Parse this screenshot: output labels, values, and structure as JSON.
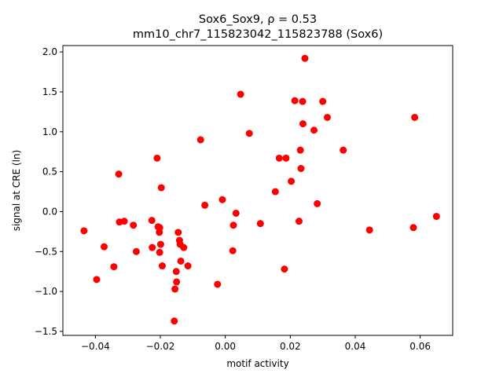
{
  "chart_data": {
    "type": "scatter",
    "title_line1": "Sox6_Sox9, ρ = 0.53",
    "title_line2": "mm10_chr7_115823042_115823788 (Sox6)",
    "xlabel": "motif activity",
    "ylabel": "signal at CRE (ln)",
    "xlim": [
      -0.05,
      0.07
    ],
    "ylim": [
      -1.55,
      2.08
    ],
    "xticks": [
      -0.04,
      -0.02,
      0.0,
      0.02,
      0.04,
      0.06
    ],
    "xtick_labels": [
      "−0.04",
      "−0.02",
      "0.00",
      "0.02",
      "0.04",
      "0.06"
    ],
    "yticks": [
      -1.5,
      -1.0,
      -0.5,
      0.0,
      0.5,
      1.0,
      1.5,
      2.0
    ],
    "ytick_labels": [
      "−1.5",
      "−1.0",
      "−0.5",
      "0.0",
      "0.5",
      "1.0",
      "1.5",
      "2.0"
    ],
    "grid": false,
    "marker_color": "#ff0000",
    "points": [
      {
        "x": -0.0435,
        "y": -0.24
      },
      {
        "x": -0.0396,
        "y": -0.85
      },
      {
        "x": -0.0373,
        "y": -0.44
      },
      {
        "x": -0.0343,
        "y": -0.69
      },
      {
        "x": -0.0328,
        "y": 0.47
      },
      {
        "x": -0.0326,
        "y": -0.13
      },
      {
        "x": -0.0311,
        "y": -0.12
      },
      {
        "x": -0.0283,
        "y": -0.17
      },
      {
        "x": -0.0274,
        "y": -0.5
      },
      {
        "x": -0.0226,
        "y": -0.11
      },
      {
        "x": -0.0225,
        "y": -0.45
      },
      {
        "x": -0.021,
        "y": 0.67
      },
      {
        "x": -0.0207,
        "y": -0.19
      },
      {
        "x": -0.0203,
        "y": -0.26
      },
      {
        "x": -0.0202,
        "y": -0.2
      },
      {
        "x": -0.0202,
        "y": -0.51
      },
      {
        "x": -0.0199,
        "y": -0.41
      },
      {
        "x": -0.0197,
        "y": 0.3
      },
      {
        "x": -0.0194,
        "y": -0.68
      },
      {
        "x": -0.0157,
        "y": -1.37
      },
      {
        "x": -0.0155,
        "y": -0.97
      },
      {
        "x": -0.0151,
        "y": -0.75
      },
      {
        "x": -0.015,
        "y": -0.88
      },
      {
        "x": -0.0145,
        "y": -0.26
      },
      {
        "x": -0.0141,
        "y": -0.36
      },
      {
        "x": -0.0139,
        "y": -0.41
      },
      {
        "x": -0.0137,
        "y": -0.62
      },
      {
        "x": -0.0128,
        "y": -0.45
      },
      {
        "x": -0.0115,
        "y": -0.68
      },
      {
        "x": -0.0076,
        "y": 0.9
      },
      {
        "x": -0.0063,
        "y": 0.08
      },
      {
        "x": -0.0024,
        "y": -0.91
      },
      {
        "x": -0.0009,
        "y": 0.15
      },
      {
        "x": 0.0023,
        "y": -0.49
      },
      {
        "x": 0.0025,
        "y": -0.17
      },
      {
        "x": 0.0033,
        "y": -0.02
      },
      {
        "x": 0.0047,
        "y": 1.47
      },
      {
        "x": 0.0074,
        "y": 0.98
      },
      {
        "x": 0.0108,
        "y": -0.15
      },
      {
        "x": 0.0154,
        "y": 0.25
      },
      {
        "x": 0.0166,
        "y": 0.67
      },
      {
        "x": 0.0182,
        "y": -0.72
      },
      {
        "x": 0.0187,
        "y": 0.67
      },
      {
        "x": 0.0203,
        "y": 0.38
      },
      {
        "x": 0.0214,
        "y": 1.39
      },
      {
        "x": 0.0227,
        "y": -0.12
      },
      {
        "x": 0.0231,
        "y": 0.77
      },
      {
        "x": 0.0233,
        "y": 0.54
      },
      {
        "x": 0.0238,
        "y": 1.38
      },
      {
        "x": 0.0239,
        "y": 1.1
      },
      {
        "x": 0.0245,
        "y": 1.92
      },
      {
        "x": 0.0273,
        "y": 1.02
      },
      {
        "x": 0.0283,
        "y": 0.1
      },
      {
        "x": 0.03,
        "y": 1.38
      },
      {
        "x": 0.0314,
        "y": 1.18
      },
      {
        "x": 0.0363,
        "y": 0.77
      },
      {
        "x": 0.0444,
        "y": -0.23
      },
      {
        "x": 0.0579,
        "y": -0.2
      },
      {
        "x": 0.0583,
        "y": 1.18
      },
      {
        "x": 0.065,
        "y": -0.06
      }
    ]
  }
}
